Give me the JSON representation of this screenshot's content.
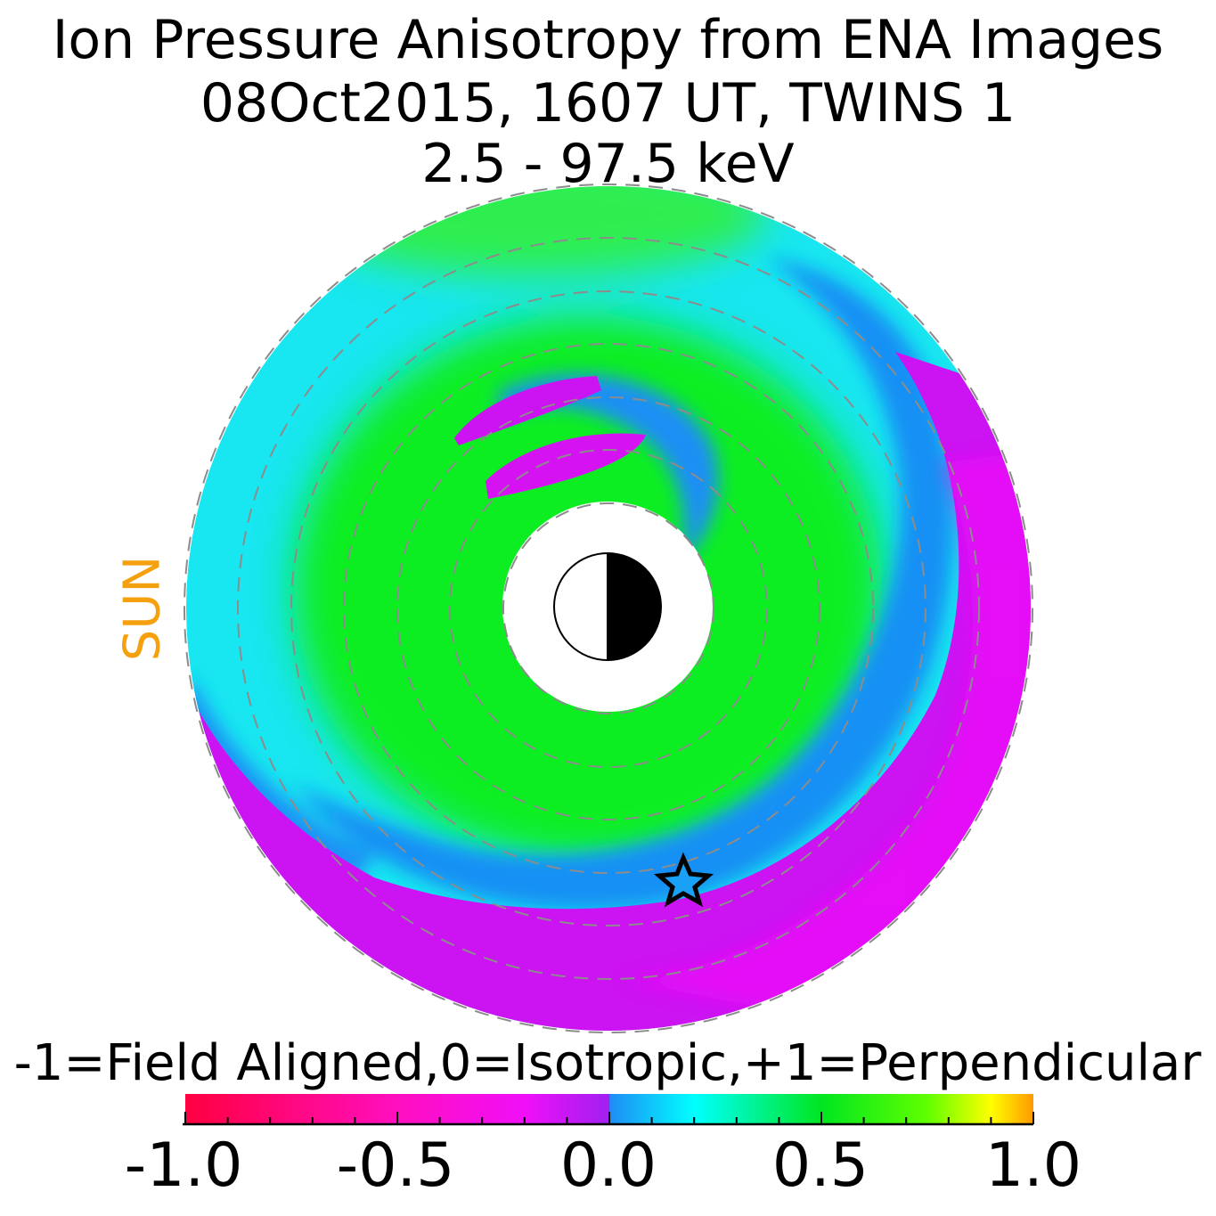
{
  "title": {
    "line1": "Ion Pressure Anisotropy from  ENA Images",
    "line2": "08Oct2015, 1607 UT,  TWINS 1",
    "line3": "2.5 - 97.5 keV"
  },
  "sun_label": "SUN",
  "colors": {
    "sun_label": "#f5a10f",
    "grid": "#8c8c8c"
  },
  "chart_data": {
    "type": "heatmap",
    "projection": "polar (equatorial plane, Sun to the left)",
    "map_regions": [
      {
        "name": "inner ring",
        "anisotropy": 0.55,
        "color": "#11ee22"
      },
      {
        "name": "outer ring",
        "anisotropy": 0.25,
        "color": "#18e6f0"
      },
      {
        "name": "blue band",
        "anisotropy": 0.1,
        "color": "#1790f4"
      },
      {
        "name": "duskside / nightside region",
        "anisotropy": -0.15,
        "color": "#cc13f2"
      },
      {
        "name": "two small patches (upper left)",
        "anisotropy": -0.15,
        "color": "#cc13f2"
      }
    ],
    "markers": [
      {
        "type": "star",
        "meaning": "spacecraft position"
      },
      {
        "type": "earth",
        "meaning": "day/night terminator"
      }
    ],
    "colorbar": {
      "label": "-1=Field Aligned,0=Isotropic,+1=Perpendicular",
      "range": [
        -1.0,
        1.0
      ],
      "ticks": [
        "-1.0",
        "-0.5",
        "0.0",
        "0.5",
        "1.0"
      ],
      "stops": [
        {
          "value": -1.0,
          "color": "#ff0040"
        },
        {
          "value": -0.5,
          "color": "#ff0fbf"
        },
        {
          "value": -0.2,
          "color": "#f00ff8"
        },
        {
          "value": 0.0,
          "color": "#a020f0"
        },
        {
          "value": 0.001,
          "color": "#1f8cf5"
        },
        {
          "value": 0.2,
          "color": "#00ffff"
        },
        {
          "value": 0.5,
          "color": "#00e620"
        },
        {
          "value": 0.75,
          "color": "#60ff00"
        },
        {
          "value": 0.9,
          "color": "#ffff00"
        },
        {
          "value": 1.0,
          "color": "#ff9900"
        }
      ]
    }
  }
}
